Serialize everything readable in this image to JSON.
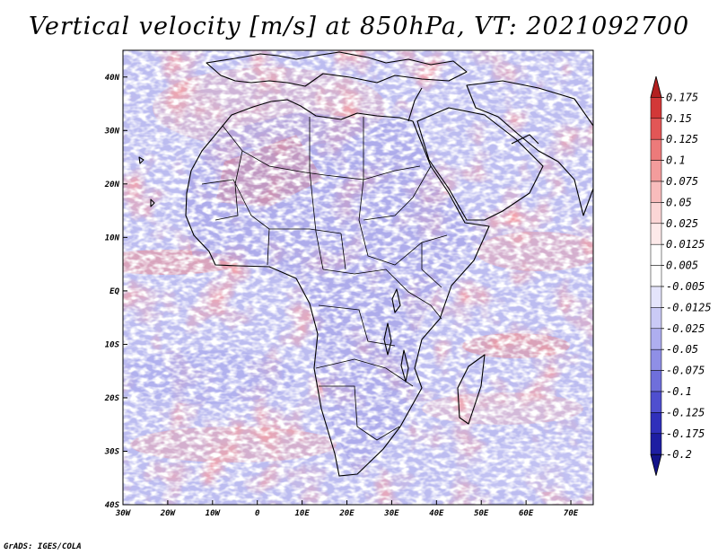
{
  "title": "Vertical velocity [m/s] at 850hPa, VT: 2021092700",
  "credit": "GrADS: IGES/COLA",
  "map": {
    "subject": "vertical velocity field over Africa",
    "lon_range": [
      -30,
      75
    ],
    "lat_range": [
      -40,
      45
    ],
    "lat_labels": [
      "40N",
      "30N",
      "20N",
      "10N",
      "EQ",
      "10S",
      "20S",
      "30S",
      "40S"
    ],
    "lon_labels": [
      "30W",
      "20W",
      "10W",
      "0",
      "10E",
      "20E",
      "30E",
      "40E",
      "50E",
      "60E",
      "70E"
    ]
  },
  "colorbar": {
    "levels": [
      "0.175",
      "0.15",
      "0.125",
      "0.1",
      "0.075",
      "0.05",
      "0.025",
      "0.0125",
      "0.005",
      "-0.005",
      "-0.0125",
      "-0.025",
      "-0.05",
      "-0.075",
      "-0.1",
      "-0.125",
      "-0.175",
      "-0.2"
    ],
    "colors": [
      "#b32020",
      "#d23838",
      "#e25656",
      "#ec7a7a",
      "#f39c9c",
      "#f8bcbc",
      "#fbd6d6",
      "#fdeaea",
      "#ffffff",
      "#ffffff",
      "#e4e4fb",
      "#cacaf6",
      "#aeaeef",
      "#8f8fe6",
      "#6f6fdb",
      "#4f4fcf",
      "#3030bb",
      "#1e1ea2",
      "#14148a"
    ]
  }
}
